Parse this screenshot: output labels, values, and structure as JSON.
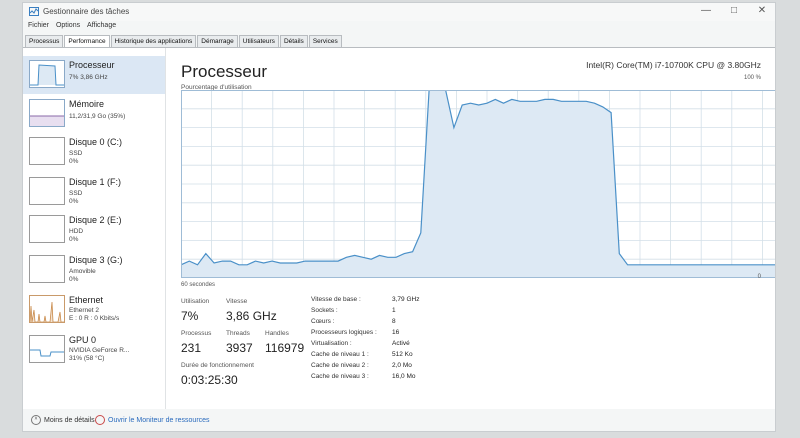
{
  "window": {
    "title": "Gestionnaire des tâches",
    "controls": [
      "—",
      "□",
      "✕"
    ]
  },
  "menu": [
    "Fichier",
    "Options",
    "Affichage"
  ],
  "tabs": [
    "Processus",
    "Performance",
    "Historique des applications",
    "Démarrage",
    "Utilisateurs",
    "Détails",
    "Services"
  ],
  "active_tab": "Performance",
  "sidebar": [
    {
      "name": "Processeur",
      "sub1": "7%  3,86 GHz",
      "sub2": ""
    },
    {
      "name": "Mémoire",
      "sub1": "11,2/31,9 Go (35%)",
      "sub2": ""
    },
    {
      "name": "Disque 0 (C:)",
      "sub1": "SSD",
      "sub2": "0%"
    },
    {
      "name": "Disque 1 (F:)",
      "sub1": "SSD",
      "sub2": "0%"
    },
    {
      "name": "Disque 2 (E:)",
      "sub1": "HDD",
      "sub2": "0%"
    },
    {
      "name": "Disque 3 (G:)",
      "sub1": "Amovible",
      "sub2": "0%"
    },
    {
      "name": "Ethernet",
      "sub1": "Ethernet 2",
      "sub2": "E : 0 R : 0 Kbits/s"
    },
    {
      "name": "GPU 0",
      "sub1": "NVIDIA GeForce R...",
      "sub2": "31% (58 °C)"
    }
  ],
  "main": {
    "title": "Processeur",
    "cpu_name": "Intel(R) Core(TM) i7-10700K CPU @ 3.80GHz",
    "graph_label": "Pourcentage d'utilisation",
    "graph_max": "100 %",
    "graph_time": "60 secondes",
    "graph_min": "0"
  },
  "stats": {
    "utilisation_label": "Utilisation",
    "utilisation_value": "7%",
    "vitesse_label": "Vitesse",
    "vitesse_value": "3,86 GHz",
    "processus_label": "Processus",
    "processus_value": "231",
    "threads_label": "Threads",
    "threads_value": "3937",
    "handles_label": "Handles",
    "handles_value": "116979",
    "uptime_label": "Durée de fonctionnement",
    "uptime_value": "0:03:25:30"
  },
  "details": [
    {
      "label": "Vitesse de base :",
      "value": "3,79 GHz"
    },
    {
      "label": "Sockets :",
      "value": "1"
    },
    {
      "label": "Cœurs :",
      "value": "8"
    },
    {
      "label": "Processeurs logiques :",
      "value": "16"
    },
    {
      "label": "Virtualisation :",
      "value": "Activé"
    },
    {
      "label": "Cache de niveau 1 :",
      "value": "512 Ko"
    },
    {
      "label": "Cache de niveau 2 :",
      "value": "2,0 Mo"
    },
    {
      "label": "Cache de niveau 3 :",
      "value": "16,0 Mo"
    }
  ],
  "cpu_history_percent": [
    7,
    9,
    7,
    13,
    8,
    9,
    9,
    7,
    7,
    9,
    8,
    9,
    8,
    8,
    8,
    9,
    9,
    9,
    9,
    9,
    11,
    12,
    11,
    10,
    12,
    11,
    11,
    13,
    14,
    24,
    100,
    100,
    100,
    80,
    92,
    93,
    92,
    93,
    95,
    93,
    95,
    94,
    94,
    94,
    95,
    95,
    94,
    94,
    94,
    94,
    93,
    91,
    88,
    13,
    7,
    7,
    7,
    7,
    7,
    7,
    7,
    7,
    7,
    7,
    7,
    7,
    7,
    7,
    7,
    7,
    7,
    7,
    7,
    7,
    7
  ],
  "footer": {
    "less_details": "Moins de détails",
    "resource_monitor": "Ouvrir le Moniteur de ressources"
  },
  "colors": {
    "cpu_line": "#4a90c8",
    "cpu_fill": "#dde9f4",
    "grid": "#d3dfe8",
    "link": "#2a6bbd"
  }
}
